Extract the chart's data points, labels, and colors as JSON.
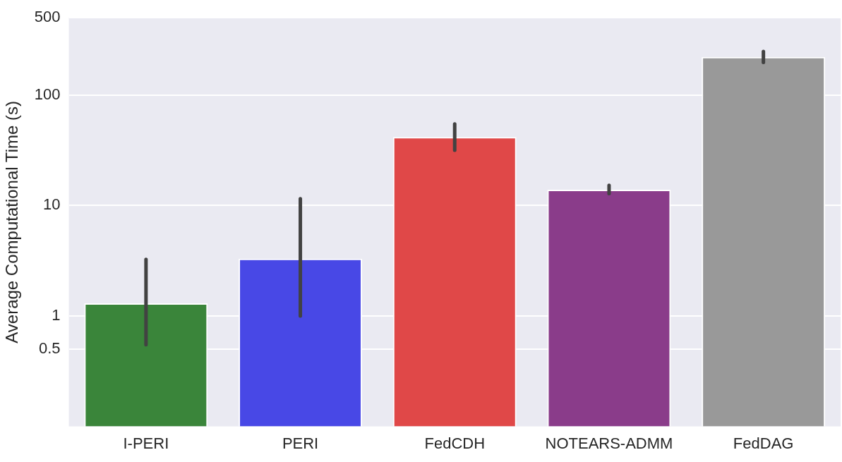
{
  "chart_data": {
    "type": "bar",
    "ylabel": "Average Computational Time (s)",
    "categories": [
      "I-PERI",
      "PERI",
      "FedCDH",
      "NOTEARS-ADMM",
      "FedDAG"
    ],
    "values": [
      1.3,
      3.3,
      41.6,
      13.9,
      221
    ],
    "errors": [
      [
        0.55,
        3.25
      ],
      [
        1.0,
        11.5
      ],
      [
        31.6,
        54.6
      ],
      [
        12.8,
        15.2
      ],
      [
        197,
        248
      ]
    ],
    "colors": [
      "#3a853a",
      "#4848e6",
      "#e04848",
      "#8a3c8a",
      "#999999"
    ],
    "log": "y",
    "ylim": [
      0.1,
      500
    ],
    "yticks": [
      0.5,
      1,
      10,
      100,
      500
    ],
    "grid": "y",
    "legend": false
  }
}
